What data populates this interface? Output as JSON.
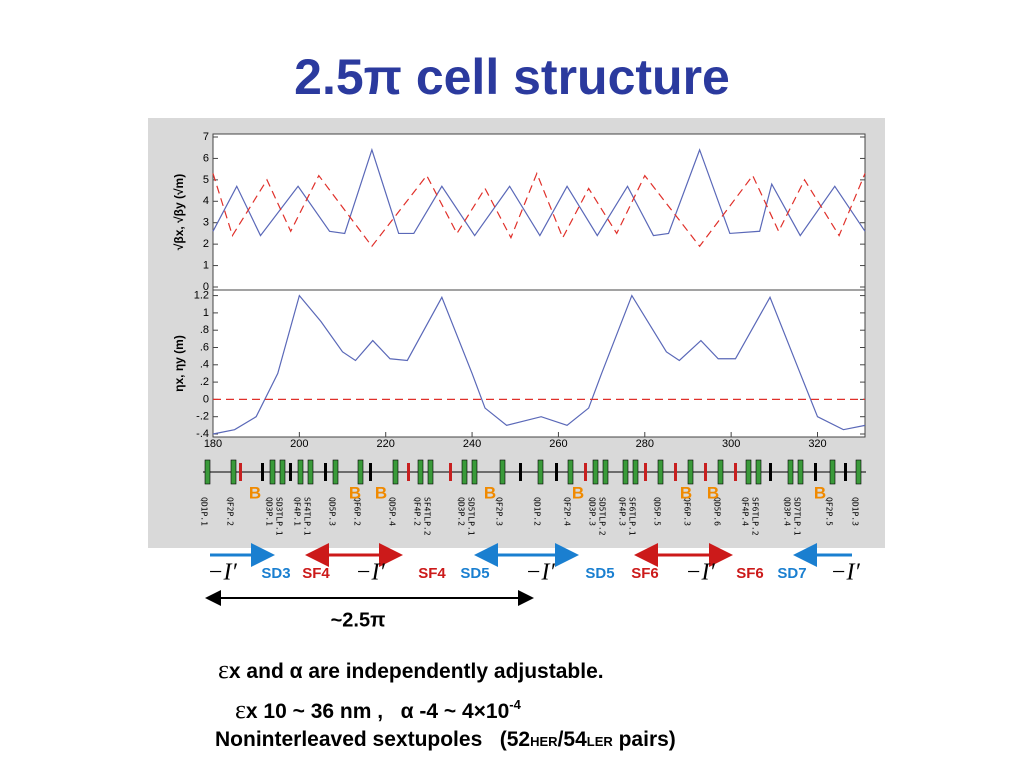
{
  "title": "2.5π cell structure",
  "chart_data": [
    {
      "type": "line",
      "ylabel": "√βx, √βy (√m)",
      "xlim": [
        180,
        331
      ],
      "ylim": [
        0,
        7
      ],
      "yticks": [
        0,
        1,
        2,
        3,
        4,
        5,
        6,
        7
      ],
      "series": [
        {
          "color": "#5a68b8",
          "dash": false,
          "x": [
            180,
            185.5,
            191,
            199.7,
            207,
            210.5,
            216.8,
            223,
            226.5,
            233,
            240.6,
            248.7,
            255.7,
            262,
            269,
            276,
            282,
            285.5,
            292.7,
            299.7,
            306.6,
            309.4,
            316,
            324,
            331
          ],
          "values": [
            2.6,
            4.7,
            2.4,
            4.7,
            2.6,
            2.5,
            6.4,
            2.5,
            2.5,
            4.7,
            2.4,
            4.7,
            2.4,
            4.7,
            2.4,
            4.7,
            2.4,
            2.5,
            6.4,
            2.5,
            2.6,
            4.8,
            2.4,
            4.7,
            2.6
          ]
        },
        {
          "color": "#e0302a",
          "dash": true,
          "x": [
            180,
            184.5,
            192.5,
            198,
            204.5,
            216.8,
            229.5,
            236.5,
            243,
            249,
            255,
            261,
            267,
            273.5,
            280,
            292.7,
            305,
            311,
            317,
            325,
            331
          ],
          "values": [
            5.3,
            2.4,
            5.0,
            2.6,
            5.2,
            1.9,
            5.2,
            2.5,
            4.6,
            2.3,
            5.3,
            2.3,
            4.6,
            2.5,
            5.2,
            1.9,
            5.2,
            2.6,
            5.0,
            2.4,
            5.3
          ]
        }
      ]
    },
    {
      "type": "line",
      "ylabel": "ηx, ηy (m)",
      "xlim": [
        180,
        331
      ],
      "ylim": [
        -0.4,
        1.23
      ],
      "xticks": [
        180,
        200,
        220,
        240,
        260,
        280,
        300,
        320
      ],
      "yticks": [
        {
          "value": -0.4,
          "label": "-.4"
        },
        {
          "value": -0.2,
          "label": "-.2"
        },
        0,
        {
          "value": 0.2,
          "label": ".2"
        },
        {
          "value": 0.4,
          "label": ".4"
        },
        {
          "value": 0.6,
          "label": ".6"
        },
        {
          "value": 0.8,
          "label": ".8"
        },
        1,
        1.2
      ],
      "series": [
        {
          "color": "#5a68b8",
          "dash": false,
          "x": [
            180,
            185,
            190,
            195,
            200,
            205,
            210,
            213,
            217,
            221,
            225,
            233,
            240,
            243,
            248,
            256,
            262,
            267,
            270,
            277,
            285,
            288,
            293,
            297,
            301,
            309,
            316,
            320,
            326,
            331
          ],
          "values": [
            -0.4,
            -0.35,
            -0.2,
            0.3,
            1.2,
            0.9,
            0.55,
            0.45,
            0.68,
            0.47,
            0.45,
            1.18,
            0.3,
            -0.1,
            -0.3,
            -0.2,
            -0.3,
            -0.1,
            0.3,
            1.2,
            0.55,
            0.45,
            0.68,
            0.47,
            0.47,
            1.18,
            0.3,
            -0.2,
            -0.35,
            -0.3
          ]
        },
        {
          "color": "#e0302a",
          "dash": true,
          "x": [
            180,
            331
          ],
          "values": [
            0,
            0
          ]
        }
      ]
    }
  ],
  "lattice": {
    "elements": [
      "QD1P.1",
      "QF2P.2",
      "QD3P.1",
      "SD3TLP.1",
      "QF4P.1",
      "SF4TLP.1",
      "QD5P.3",
      "QF6P.2",
      "QD5P.4",
      "QF4P.2",
      "SF4TLP.2",
      "QD3P.2",
      "SD5TLP.1",
      "QF2P.3",
      "QD1P.2",
      "QF2P.4",
      "QD3P.3",
      "SD5TLP.2",
      "QF4P.3",
      "SF6TLP.1",
      "QD5P.5",
      "QF6P.3",
      "QD5P.6",
      "QF4P.4",
      "SF6TLP.2",
      "QD3P.4",
      "SD7TLP.1",
      "QF2P.5",
      "QD1P.3"
    ],
    "bends": [
      "B",
      "B",
      "B",
      "B",
      "B",
      "B",
      "B",
      "B"
    ]
  },
  "pairs": [
    "−I′",
    "SD3",
    "SF4",
    "−I′",
    "SF4",
    "SD5",
    "−I′",
    "SD5",
    "SF6",
    "−I′",
    "SF6",
    "SD7",
    "−I′"
  ],
  "span": "~2.5π",
  "notes": [
    [
      "ε",
      "x and α are independently adjustable."
    ],
    [
      "ε",
      "x 10 ~ 36 nm ,   α -4 ~ 4×10",
      "-4"
    ],
    [
      "Noninterleaved sextupoles   (52",
      "HER",
      "/54",
      "LER",
      " pairs)"
    ]
  ]
}
